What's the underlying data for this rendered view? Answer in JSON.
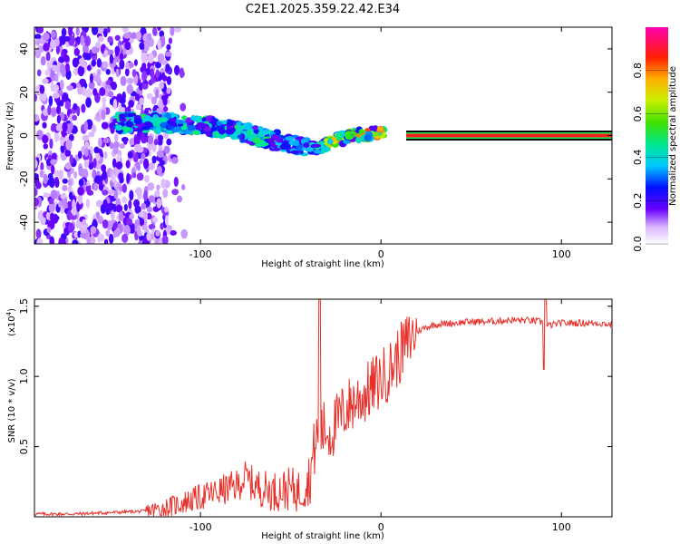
{
  "title": "C2E1.2025.359.22.42.E34",
  "chart_data": [
    {
      "type": "heatmap",
      "name": "spectrogram",
      "xlabel": "Height of straight line (km)",
      "ylabel": "Frequency (Hz)",
      "xlim": [
        -192,
        128
      ],
      "ylim": [
        -50,
        50
      ],
      "xticks": [
        -100,
        0,
        100
      ],
      "yticks": [
        -40,
        -20,
        0,
        20,
        40
      ],
      "colorbar": {
        "label": "Normalized spectral amplitude",
        "range": [
          0,
          1
        ],
        "ticks": [
          0.0,
          0.2,
          0.4,
          0.6,
          0.8
        ]
      },
      "ridge": {
        "description_x": [
          -145,
          -120,
          -100,
          -80,
          -60,
          -45,
          -35,
          -25,
          -15,
          -5,
          5,
          15,
          50,
          90,
          128
        ],
        "frequency_hz": [
          6,
          6,
          5,
          2,
          -2,
          -5,
          -6,
          -2,
          0,
          1,
          2,
          1,
          0,
          0,
          0
        ]
      }
    },
    {
      "type": "line",
      "name": "snr",
      "xlabel": "Height of straight line (km)",
      "ylabel": "SNR (10 * v/v)",
      "y_multiplier_label": "(x10",
      "y_multiplier_exp": "4",
      "y_multiplier_close": ")",
      "xlim": [
        -192,
        128
      ],
      "ylim": [
        0,
        1.55
      ],
      "xticks": [
        -100,
        0,
        100
      ],
      "yticks": [
        0.5,
        1.0,
        1.5
      ],
      "series": [
        {
          "name": "SNR",
          "color": "#e8302a",
          "x": [
            -192,
            -170,
            -150,
            -130,
            -120,
            -110,
            -100,
            -90,
            -80,
            -75,
            -70,
            -60,
            -50,
            -45,
            -40,
            -36,
            -32,
            -28,
            -24,
            -20,
            -15,
            -10,
            -5,
            0,
            5,
            10,
            15,
            20,
            25,
            30,
            40,
            50,
            60,
            70,
            80,
            88,
            90,
            92,
            100,
            110,
            120,
            128
          ],
          "y": [
            0.02,
            0.02,
            0.03,
            0.04,
            0.06,
            0.1,
            0.14,
            0.18,
            0.22,
            0.28,
            0.22,
            0.18,
            0.2,
            0.18,
            0.25,
            0.55,
            0.62,
            0.6,
            0.68,
            0.76,
            0.82,
            0.86,
            0.92,
            0.98,
            1.05,
            1.15,
            1.25,
            1.32,
            1.35,
            1.37,
            1.38,
            1.39,
            1.39,
            1.4,
            1.4,
            1.39,
            1.38,
            1.36,
            1.38,
            1.38,
            1.38,
            1.37
          ]
        }
      ]
    }
  ]
}
